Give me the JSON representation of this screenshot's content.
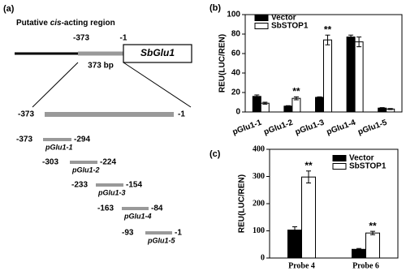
{
  "panel_a": {
    "label": "(a)",
    "title": [
      "Putative ",
      "cis",
      "-acting region"
    ],
    "gene": {
      "start": "-373",
      "end": "-1",
      "name": "SbGlu1",
      "length": "373 bp"
    },
    "region": {
      "start": "-373",
      "end": "-1"
    },
    "fragments": [
      {
        "start": "-373",
        "end": "-294",
        "name": "pGlu1-1"
      },
      {
        "start": "-303",
        "end": "-224",
        "name": "pGlu1-2"
      },
      {
        "start": "-233",
        "end": "-154",
        "name": "pGlu1-3"
      },
      {
        "start": "-163",
        "end": "-84",
        "name": "pGlu1-4"
      },
      {
        "start": "-93",
        "end": "-1",
        "name": "pGlu1-5"
      }
    ]
  },
  "chart_data": [
    {
      "type": "bar",
      "panel_label": "(b)",
      "y_label": "REU(LUC/REN)",
      "categories": [
        "pGlu1-1",
        "pGlu1-2",
        "pGlu1-3",
        "pGlu1-4",
        "pGlu1-5"
      ],
      "series": [
        {
          "name": "Vector",
          "color": "#000000",
          "values": [
            16,
            6,
            15,
            77,
            4
          ],
          "errors": [
            1.5,
            0.5,
            0.5,
            2,
            0.5
          ]
        },
        {
          "name": "SbSTOP1",
          "color": "#ffffff",
          "values": [
            9,
            14,
            74,
            72,
            3
          ],
          "errors": [
            1,
            1.5,
            5,
            5,
            0.5
          ]
        }
      ],
      "ylim": [
        0,
        100
      ],
      "yticks": [
        0,
        20,
        40,
        60,
        80,
        100
      ],
      "legend": "upper left",
      "annotations": [
        {
          "text": "**",
          "category": "pGlu1-2",
          "series": "SbSTOP1"
        },
        {
          "text": "**",
          "category": "pGlu1-3",
          "series": "SbSTOP1"
        }
      ]
    },
    {
      "type": "bar",
      "panel_label": "(c)",
      "y_label": "REU(LUC/REN)",
      "categories": [
        "Probe 4",
        "Probe 6"
      ],
      "series": [
        {
          "name": "Vector",
          "color": "#000000",
          "values": [
            103,
            32
          ],
          "errors": [
            12,
            3
          ]
        },
        {
          "name": "SbSTOP1",
          "color": "#ffffff",
          "values": [
            298,
            92
          ],
          "errors": [
            22,
            6
          ]
        }
      ],
      "ylim": [
        0,
        400
      ],
      "yticks": [
        0,
        100,
        200,
        300,
        400
      ],
      "legend": "upper right",
      "annotations": [
        {
          "text": "**",
          "category": "Probe 4",
          "series": "SbSTOP1"
        },
        {
          "text": "**",
          "category": "Probe 6",
          "series": "SbSTOP1"
        }
      ]
    }
  ]
}
